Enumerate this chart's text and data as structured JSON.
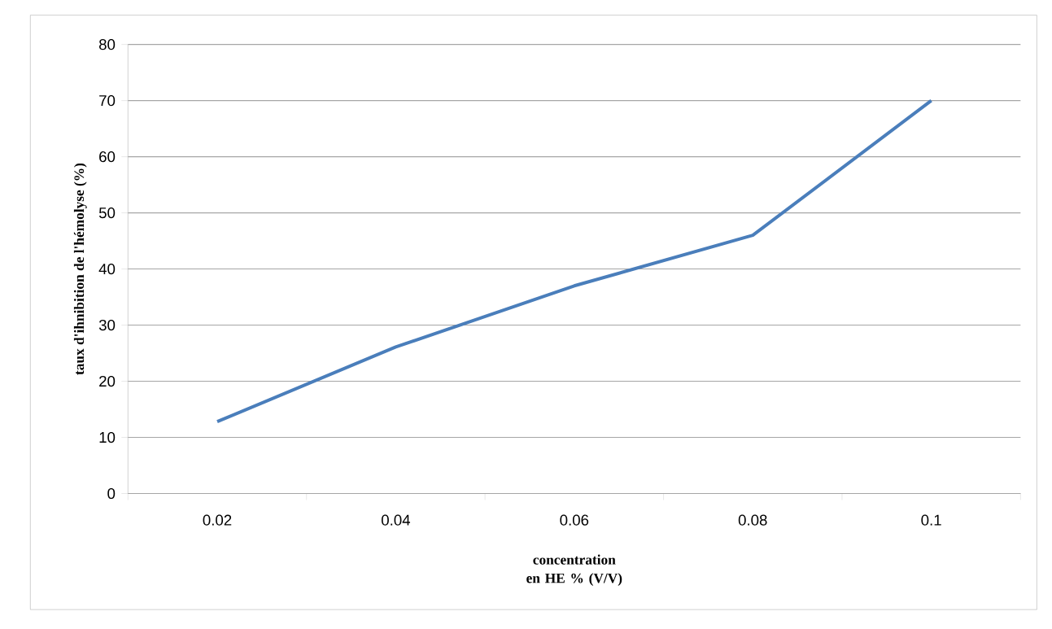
{
  "chart_data": {
    "type": "line",
    "xlabel": "concentration en HE % (V/V)",
    "ylabel": "taux d'ihnibition de l'hémolyse (%)",
    "categories": [
      "0.02",
      "0.04",
      "0.06",
      "0.08",
      "0.1"
    ],
    "values": [
      12.8,
      26.1,
      37,
      46,
      70
    ],
    "color": "#4a7ebb",
    "ylim": [
      0,
      80
    ],
    "yticks": [
      0,
      10,
      20,
      30,
      40,
      50,
      60,
      70,
      80
    ],
    "grid": "y",
    "marker": "none",
    "line_style": "solid"
  }
}
